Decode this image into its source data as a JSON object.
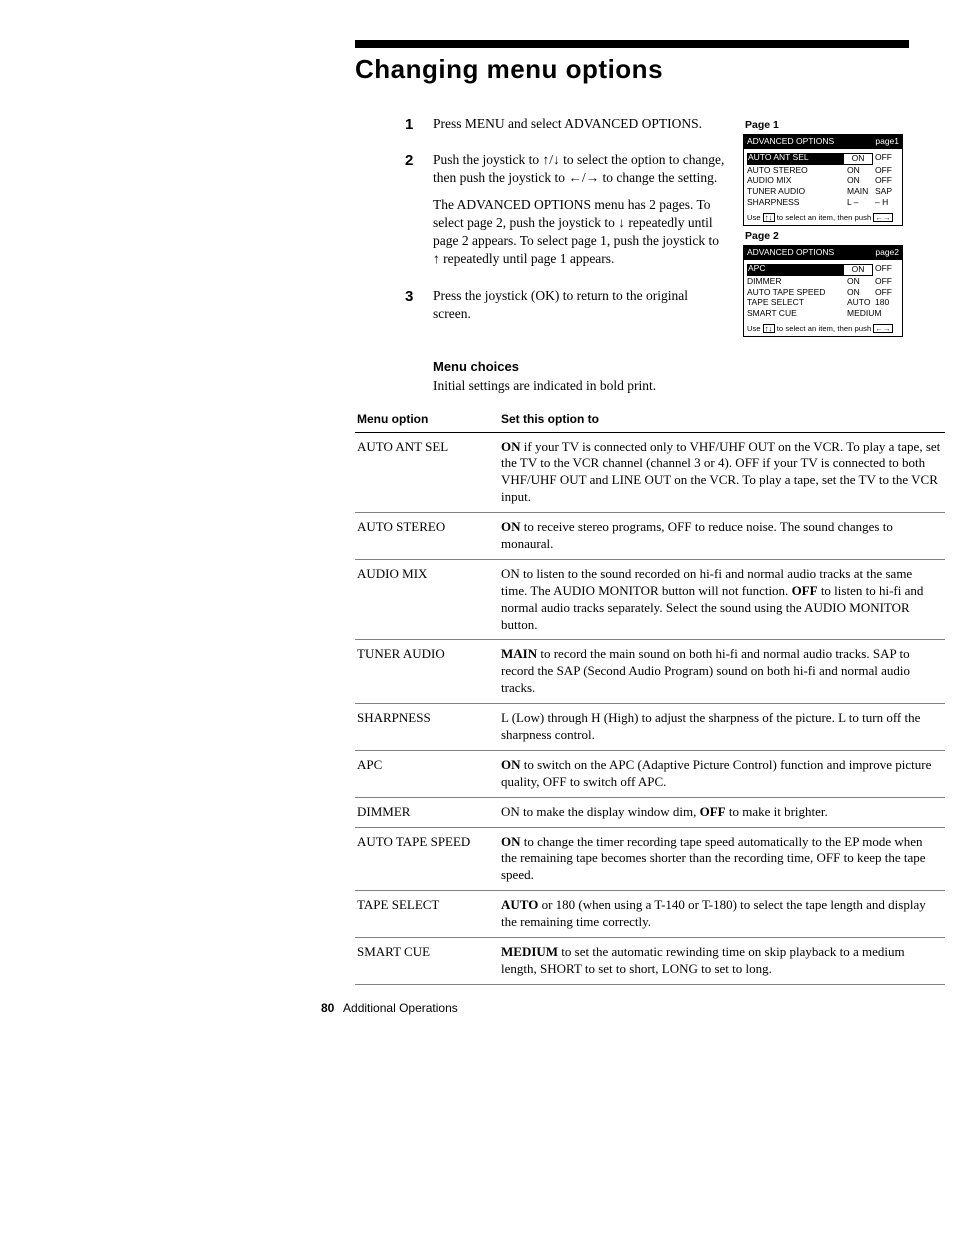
{
  "title": "Changing menu options",
  "steps": [
    {
      "num": "1",
      "paras": [
        "Press MENU and select ADVANCED OPTIONS."
      ]
    },
    {
      "num": "2",
      "paras": [
        "Push the joystick to ↑/↓ to select the option to change, then push the joystick to ←/→ to change the setting.",
        "The ADVANCED OPTIONS menu has 2 pages. To select page 2, push the joystick to ↓ repeatedly until page 2 appears. To select page 1, push the joystick to ↑ repeatedly until page 1 appears."
      ]
    },
    {
      "num": "3",
      "paras": [
        "Press the joystick (OK) to return to the original screen."
      ]
    }
  ],
  "sidebar": {
    "page1": {
      "label": "Page 1",
      "header_left": "ADVANCED OPTIONS",
      "header_right": "page1",
      "rows": [
        {
          "name": "AUTO ANT SEL",
          "v1": "ON",
          "v2": "OFF",
          "sel": true
        },
        {
          "name": "AUTO STEREO",
          "v1": "ON",
          "v2": "OFF"
        },
        {
          "name": "AUDIO MIX",
          "v1": "ON",
          "v2": "OFF"
        },
        {
          "name": "TUNER AUDIO",
          "v1": "MAIN",
          "v2": "SAP"
        },
        {
          "name": "SHARPNESS",
          "v1": "L –",
          "v2": "– H"
        }
      ],
      "footer": "Use ↑↓ to select an item, then push ←→"
    },
    "page2": {
      "label": "Page 2",
      "header_left": "ADVANCED OPTIONS",
      "header_right": "page2",
      "rows": [
        {
          "name": "APC",
          "v1": "ON",
          "v2": "OFF",
          "sel": true
        },
        {
          "name": "DIMMER",
          "v1": "ON",
          "v2": "OFF"
        },
        {
          "name": "AUTO TAPE SPEED",
          "v1": "ON",
          "v2": "OFF"
        },
        {
          "name": "TAPE SELECT",
          "v1": "AUTO",
          "v2": "180"
        },
        {
          "name": "SMART CUE",
          "v1": "MEDIUM",
          "v2": ""
        }
      ],
      "footer": "Use ↑↓ to select an item, then push ←→"
    }
  },
  "menu_choices": {
    "title": "Menu choices",
    "subtitle": "Initial settings are indicated in bold print."
  },
  "table": {
    "col1": "Menu option",
    "col2": "Set this option to",
    "rows": [
      {
        "name": "AUTO ANT SEL",
        "desc": "<b>ON</b> if your TV is connected only to VHF/UHF OUT on the VCR. To play a tape, set the TV to the VCR channel (channel 3 or 4). OFF if your TV is connected to both VHF/UHF OUT and LINE OUT on the VCR. To play a tape, set the TV to the VCR input."
      },
      {
        "name": "AUTO STEREO",
        "desc": "<b>ON</b> to receive stereo programs, OFF to reduce noise. The sound changes to monaural."
      },
      {
        "name": "AUDIO MIX",
        "desc": "ON to listen to the sound recorded on hi-fi and normal audio tracks at the same time. The AUDIO MONITOR button will not function. <b>OFF</b> to listen to hi-fi and normal audio tracks separately. Select the sound using the AUDIO MONITOR button."
      },
      {
        "name": "TUNER AUDIO",
        "desc": "<b>MAIN</b> to record the main sound on both hi-fi and normal audio tracks. SAP to record the SAP (Second Audio Program) sound on both hi-fi and normal audio tracks."
      },
      {
        "name": "SHARPNESS",
        "desc": "L (Low) through H (High) to adjust the sharpness of the picture. L to turn off the sharpness control."
      },
      {
        "name": "APC",
        "desc": "<b>ON</b> to switch on the APC (Adaptive Picture Control) function and improve picture quality, OFF to switch off APC."
      },
      {
        "name": "DIMMER",
        "desc": "ON to make the display window dim, <b>OFF</b> to make it brighter."
      },
      {
        "name": "AUTO TAPE SPEED",
        "desc": "<b>ON</b> to change the timer recording tape speed automatically to the EP mode when the remaining tape becomes shorter than the recording time, OFF to keep the tape speed."
      },
      {
        "name": "TAPE SELECT",
        "desc": "<b>AUTO</b> or 180 (when using a T-140 or T-180) to select the tape length and display the remaining time correctly."
      },
      {
        "name": "SMART CUE",
        "desc": "<b>MEDIUM</b> to set the automatic rewinding time on skip playback to a medium length, SHORT to set to short, LONG to set to long."
      }
    ]
  },
  "footer": {
    "page_number": "80",
    "section": "Additional Operations"
  }
}
